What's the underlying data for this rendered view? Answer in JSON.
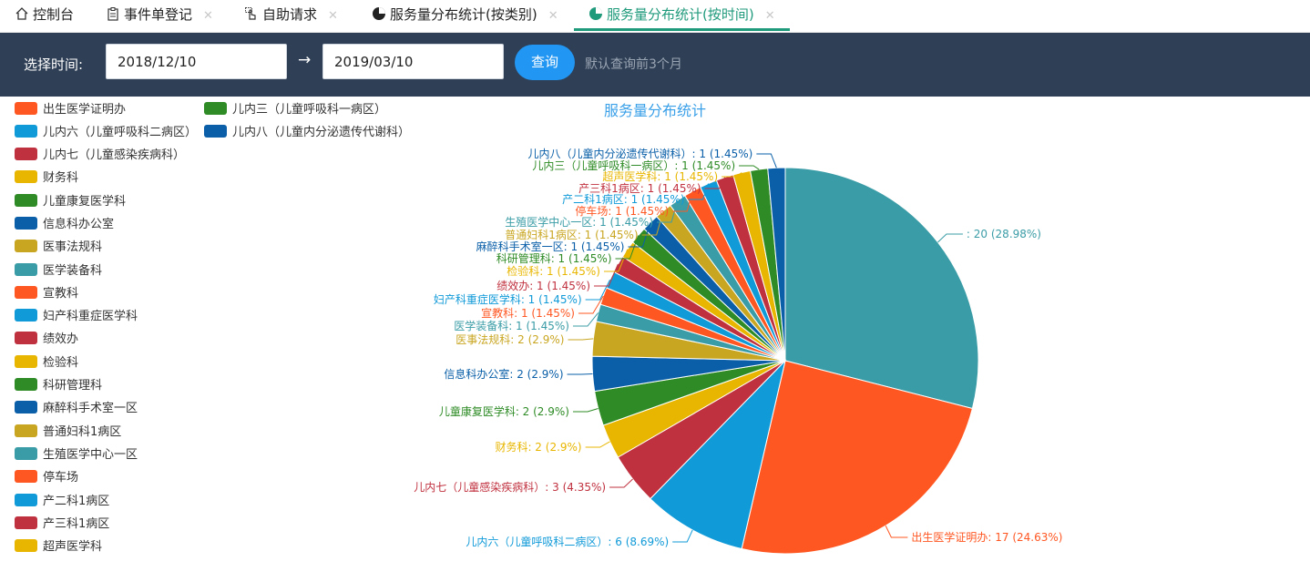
{
  "tabs": [
    {
      "label": "控制台",
      "icon": "home-icon",
      "closable": false,
      "active": false
    },
    {
      "label": "事件单登记",
      "icon": "clipboard-icon",
      "closable": true,
      "active": false
    },
    {
      "label": "自助请求",
      "icon": "hand-pointer-icon",
      "closable": true,
      "active": false
    },
    {
      "label": "服务量分布统计(按类别)",
      "icon": "pie-chart-icon",
      "closable": true,
      "active": false
    },
    {
      "label": "服务量分布统计(按时间)",
      "icon": "pie-chart-icon",
      "closable": true,
      "active": true
    }
  ],
  "toolbar": {
    "time_label": "选择时间:",
    "start_date": "2018/12/10",
    "arrow": "→",
    "end_date": "2019/03/10",
    "query_button": "查询",
    "hint": "默认查询前3个月"
  },
  "chart_data": {
    "type": "pie",
    "title": "服务量分布统计",
    "slices": [
      {
        "name": "",
        "value": 20,
        "percent": "28.98%",
        "color": "#3a9ca6"
      },
      {
        "name": "出生医学证明办",
        "value": 17,
        "percent": "24.63%",
        "color": "#ff5722"
      },
      {
        "name": "儿内六（儿童呼吸科二病区）",
        "value": 6,
        "percent": "8.69%",
        "color": "#109ad8"
      },
      {
        "name": "儿内七（儿童感染疾病科）",
        "value": 3,
        "percent": "4.35%",
        "color": "#c0313f"
      },
      {
        "name": "财务科",
        "value": 2,
        "percent": "2.9%",
        "color": "#e8b600"
      },
      {
        "name": "儿童康复医学科",
        "value": 2,
        "percent": "2.9%",
        "color": "#2e8b25"
      },
      {
        "name": "信息科办公室",
        "value": 2,
        "percent": "2.9%",
        "color": "#0a5fa8"
      },
      {
        "name": "医事法规科",
        "value": 2,
        "percent": "2.9%",
        "color": "#c9a621"
      },
      {
        "name": "医学装备科",
        "value": 1,
        "percent": "1.45%",
        "color": "#3a9ca6"
      },
      {
        "name": "宣教科",
        "value": 1,
        "percent": "1.45%",
        "color": "#ff5722"
      },
      {
        "name": "妇产科重症医学科",
        "value": 1,
        "percent": "1.45%",
        "color": "#109ad8"
      },
      {
        "name": "绩效办",
        "value": 1,
        "percent": "1.45%",
        "color": "#c0313f"
      },
      {
        "name": "检验科",
        "value": 1,
        "percent": "1.45%",
        "color": "#e8b600"
      },
      {
        "name": "科研管理科",
        "value": 1,
        "percent": "1.45%",
        "color": "#2e8b25"
      },
      {
        "name": "麻醉科手术室一区",
        "value": 1,
        "percent": "1.45%",
        "color": "#0a5fa8"
      },
      {
        "name": "普通妇科1病区",
        "value": 1,
        "percent": "1.45%",
        "color": "#c9a621"
      },
      {
        "name": "生殖医学中心一区",
        "value": 1,
        "percent": "1.45%",
        "color": "#3a9ca6"
      },
      {
        "name": "停车场",
        "value": 1,
        "percent": "1.45%",
        "color": "#ff5722"
      },
      {
        "name": "产二科1病区",
        "value": 1,
        "percent": "1.45%",
        "color": "#109ad8"
      },
      {
        "name": "产三科1病区",
        "value": 1,
        "percent": "1.45%",
        "color": "#c0313f"
      },
      {
        "name": "超声医学科",
        "value": 1,
        "percent": "1.45%",
        "color": "#e8b600"
      },
      {
        "name": "儿内三（儿童呼吸科一病区）",
        "value": 1,
        "percent": "1.45%",
        "color": "#2e8b25"
      },
      {
        "name": "儿内八（儿童内分泌遗传代谢科）",
        "value": 1,
        "percent": "1.45%",
        "color": "#0a5fa8"
      }
    ],
    "legend": [
      "出生医学证明办",
      "儿内三（儿童呼吸科一病区）",
      "儿内六（儿童呼吸科二病区）",
      "儿内八（儿童内分泌遗传代谢科）",
      "儿内七（儿童感染疾病科）",
      "财务科",
      "儿童康复医学科",
      "信息科办公室",
      "医事法规科",
      "医学装备科",
      "宣教科",
      "妇产科重症医学科",
      "绩效办",
      "检验科",
      "科研管理科",
      "麻醉科手术室一区",
      "普通妇科1病区",
      "生殖医学中心一区",
      "停车场",
      "产二科1病区",
      "产三科1病区",
      "超声医学科"
    ],
    "legend_placement": "left"
  }
}
